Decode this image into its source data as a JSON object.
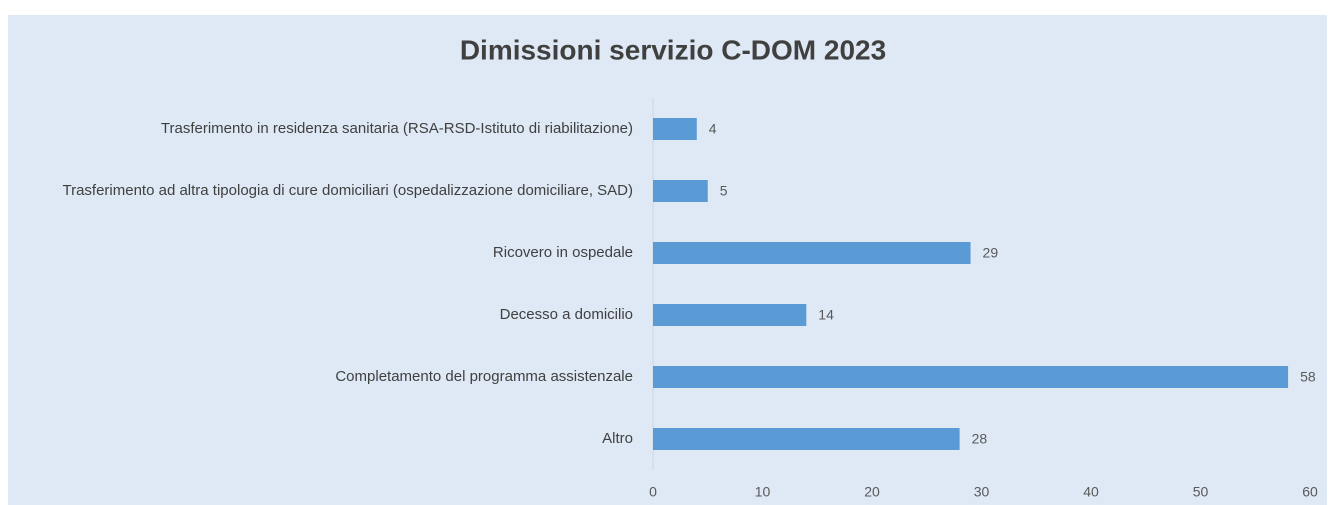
{
  "chart_data": {
    "type": "barh",
    "title": "Dimissioni servizio C-DOM 2023",
    "categories": [
      "Trasferimento in residenza sanitaria (RSA-RSD-Istituto di riabilitazione)",
      "Trasferimento ad altra tipologia di cure domiciliari (ospedalizzazione domiciliare, SAD)",
      "Ricovero in ospedale",
      "Decesso a domicilio",
      "Completamento del programma assistenzale",
      "Altro"
    ],
    "values": [
      4,
      5,
      29,
      14,
      58,
      28
    ],
    "color": "#5b9bd5",
    "xlim": [
      0,
      60
    ],
    "xticks": [
      0,
      10,
      20,
      30,
      40,
      50,
      60
    ],
    "grid": false
  }
}
